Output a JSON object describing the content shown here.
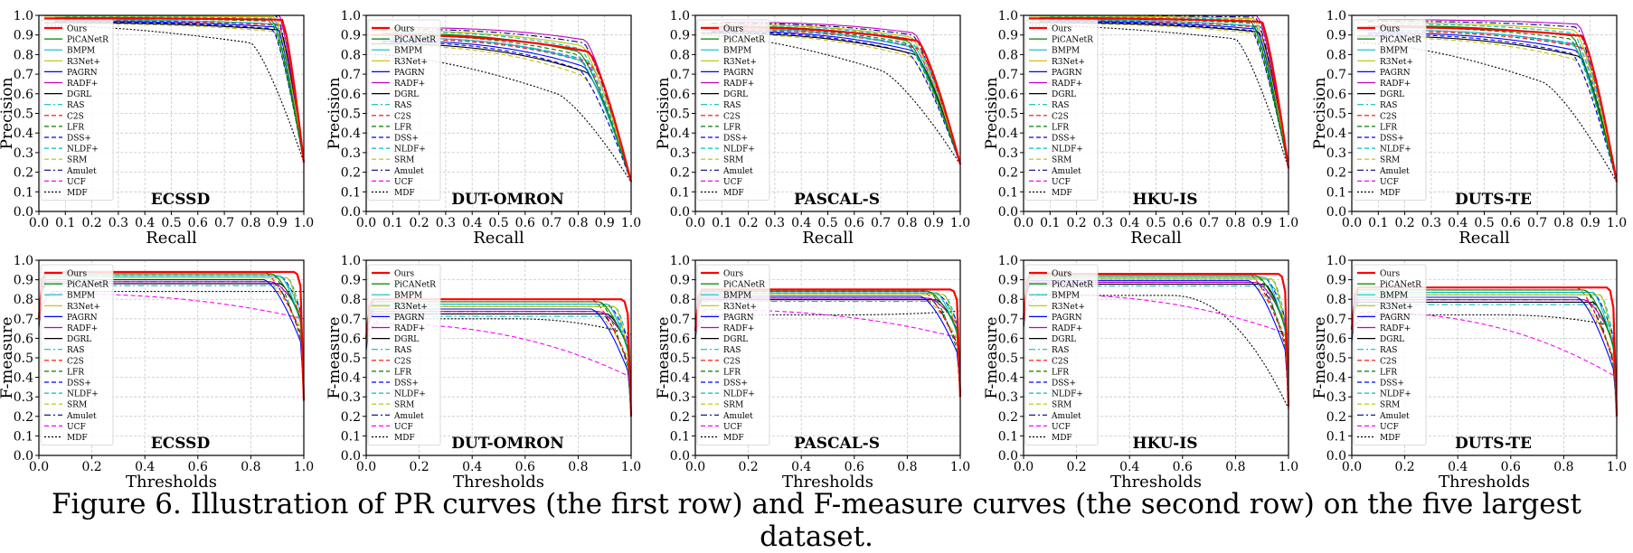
{
  "caption": "Figure 6. Illustration of PR curves (the first row) and F-measure curves (the second row) on the five largest dataset.",
  "legend_entries": [
    {
      "name": "Ours",
      "color": "#ff0000",
      "dash": "solid"
    },
    {
      "name": "PiCANetR",
      "color": "#008000",
      "dash": "solid"
    },
    {
      "name": "BMPM",
      "color": "#00bfbf",
      "dash": "solid"
    },
    {
      "name": "R3Net+",
      "color": "#bfbf00",
      "dash": "solid"
    },
    {
      "name": "PAGRN",
      "color": "#0000ff",
      "dash": "solid"
    },
    {
      "name": "RADF+",
      "color": "#bf00bf",
      "dash": "solid"
    },
    {
      "name": "DGRL",
      "color": "#000000",
      "dash": "solid"
    },
    {
      "name": "RAS",
      "color": "#00bfbf",
      "dash": "dashdot"
    },
    {
      "name": "C2S",
      "color": "#ff0000",
      "dash": "dashed"
    },
    {
      "name": "LFR",
      "color": "#008000",
      "dash": "dashed"
    },
    {
      "name": "DSS+",
      "color": "#0000ff",
      "dash": "dashed"
    },
    {
      "name": "NLDF+",
      "color": "#00bfbf",
      "dash": "dashed"
    },
    {
      "name": "SRM",
      "color": "#bfbf00",
      "dash": "dashed"
    },
    {
      "name": "Amulet",
      "color": "#000080",
      "dash": "dashdot"
    },
    {
      "name": "UCF",
      "color": "#ff00ff",
      "dash": "dashed"
    },
    {
      "name": "MDF",
      "color": "#000000",
      "dash": "dotted"
    }
  ],
  "chart_data": [
    {
      "type": "line",
      "kind": "pr",
      "title": "ECSSD",
      "xlabel": "Recall",
      "ylabel": "Precision",
      "xlim": [
        0,
        1
      ],
      "ylim": [
        0,
        1
      ],
      "grid": true,
      "legend": "upper-left",
      "xticks": [
        "0.0",
        "0.1",
        "0.2",
        "0.3",
        "0.4",
        "0.5",
        "0.6",
        "0.7",
        "0.8",
        "0.9",
        "1.0"
      ],
      "yticks": [
        "0.0",
        "0.1",
        "0.2",
        "0.3",
        "0.4",
        "0.5",
        "0.6",
        "0.7",
        "0.8",
        "0.9",
        "1.0"
      ],
      "series_shape": {
        "top": 0.985,
        "bottom": 0.97,
        "knee": 0.9,
        "end": 0.25,
        "spread": 0.015,
        "mdf_top": 0.95,
        "mdf_mid": 0.86,
        "mdf_knee": 0.8
      }
    },
    {
      "type": "line",
      "kind": "pr",
      "title": "DUT-OMRON",
      "xlabel": "Recall",
      "ylabel": "Precision",
      "xlim": [
        0,
        1
      ],
      "ylim": [
        0,
        1
      ],
      "grid": true,
      "legend": "upper-left",
      "xticks": [
        "0.0",
        "0.1",
        "0.2",
        "0.3",
        "0.4",
        "0.5",
        "0.6",
        "0.7",
        "0.8",
        "0.9",
        "1.0"
      ],
      "yticks": [
        "0.0",
        "0.1",
        "0.2",
        "0.3",
        "0.4",
        "0.5",
        "0.6",
        "0.7",
        "0.8",
        "0.9",
        "1.0"
      ],
      "series_shape": {
        "top": 0.9,
        "bottom": 0.8,
        "knee": 0.82,
        "end": 0.15,
        "spread": 0.03,
        "mdf_top": 0.8,
        "mdf_mid": 0.6,
        "mdf_knee": 0.72
      }
    },
    {
      "type": "line",
      "kind": "pr",
      "title": "PASCAL-S",
      "xlabel": "Recall",
      "ylabel": "Precision",
      "xlim": [
        0,
        1
      ],
      "ylim": [
        0,
        1
      ],
      "grid": true,
      "legend": "upper-left",
      "xticks": [
        "0.0",
        "0.1",
        "0.2",
        "0.3",
        "0.4",
        "0.5",
        "0.6",
        "0.7",
        "0.8",
        "0.9",
        "1.0"
      ],
      "yticks": [
        "0.0",
        "0.1",
        "0.2",
        "0.3",
        "0.4",
        "0.5",
        "0.6",
        "0.7",
        "0.8",
        "0.9",
        "1.0"
      ],
      "series_shape": {
        "top": 0.94,
        "bottom": 0.86,
        "knee": 0.82,
        "end": 0.24,
        "spread": 0.02,
        "mdf_top": 0.9,
        "mdf_mid": 0.72,
        "mdf_knee": 0.7
      }
    },
    {
      "type": "line",
      "kind": "pr",
      "title": "HKU-IS",
      "xlabel": "Recall",
      "ylabel": "Precision",
      "xlim": [
        0,
        1
      ],
      "ylim": [
        0,
        1
      ],
      "grid": true,
      "legend": "upper-left",
      "xticks": [
        "0.0",
        "0.1",
        "0.2",
        "0.3",
        "0.4",
        "0.5",
        "0.6",
        "0.7",
        "0.8",
        "0.9",
        "1.0"
      ],
      "yticks": [
        "0.0",
        "0.1",
        "0.2",
        "0.3",
        "0.4",
        "0.5",
        "0.6",
        "0.7",
        "0.8",
        "0.9",
        "1.0"
      ],
      "series_shape": {
        "top": 0.985,
        "bottom": 0.96,
        "knee": 0.88,
        "end": 0.22,
        "spread": 0.015,
        "mdf_top": 0.95,
        "mdf_mid": 0.88,
        "mdf_knee": 0.8
      }
    },
    {
      "type": "line",
      "kind": "pr",
      "title": "DUTS-TE",
      "xlabel": "Recall",
      "ylabel": "Precision",
      "xlim": [
        0,
        1
      ],
      "ylim": [
        0,
        1
      ],
      "grid": true,
      "legend": "upper-left",
      "xticks": [
        "0.0",
        "0.1",
        "0.2",
        "0.3",
        "0.4",
        "0.5",
        "0.6",
        "0.7",
        "0.8",
        "0.9",
        "1.0"
      ],
      "yticks": [
        "0.0",
        "0.1",
        "0.2",
        "0.3",
        "0.4",
        "0.5",
        "0.6",
        "0.7",
        "0.8",
        "0.9",
        "1.0"
      ],
      "series_shape": {
        "top": 0.94,
        "bottom": 0.88,
        "knee": 0.85,
        "end": 0.15,
        "spread": 0.03,
        "mdf_top": 0.86,
        "mdf_mid": 0.66,
        "mdf_knee": 0.72
      }
    },
    {
      "type": "line",
      "kind": "fm",
      "title": "ECSSD",
      "xlabel": "Thresholds",
      "ylabel": "F-measure",
      "xlim": [
        0,
        1
      ],
      "ylim": [
        0,
        1
      ],
      "grid": true,
      "legend": "upper-left",
      "xticks": [
        "0.0",
        "0.2",
        "0.4",
        "0.6",
        "0.8",
        "1.0"
      ],
      "yticks": [
        "0.0",
        "0.1",
        "0.2",
        "0.3",
        "0.4",
        "0.5",
        "0.6",
        "0.7",
        "0.8",
        "0.9",
        "1.0"
      ],
      "series_shape": {
        "top": 0.94,
        "bottom": 0.86,
        "drop": 0.7,
        "end": 0.28,
        "mdf_top": 0.84,
        "mdf_end": 0.84,
        "ucf_end": 0.7
      }
    },
    {
      "type": "line",
      "kind": "fm",
      "title": "DUT-OMRON",
      "xlabel": "Thresholds",
      "ylabel": "F-measure",
      "xlim": [
        0,
        1
      ],
      "ylim": [
        0,
        1
      ],
      "grid": true,
      "legend": "upper-left",
      "xticks": [
        "0.0",
        "0.2",
        "0.4",
        "0.6",
        "0.8",
        "1.0"
      ],
      "yticks": [
        "0.0",
        "0.1",
        "0.2",
        "0.3",
        "0.4",
        "0.5",
        "0.6",
        "0.7",
        "0.8",
        "0.9",
        "1.0"
      ],
      "series_shape": {
        "top": 0.8,
        "bottom": 0.7,
        "drop": 0.55,
        "end": 0.2,
        "mdf_top": 0.7,
        "mdf_end": 0.62,
        "ucf_end": 0.4
      }
    },
    {
      "type": "line",
      "kind": "fm",
      "title": "PASCAL-S",
      "xlabel": "Thresholds",
      "ylabel": "F-measure",
      "xlim": [
        0,
        1
      ],
      "ylim": [
        0,
        1
      ],
      "grid": true,
      "legend": "upper-left",
      "xticks": [
        "0.0",
        "0.2",
        "0.4",
        "0.6",
        "0.8",
        "1.0"
      ],
      "yticks": [
        "0.0",
        "0.1",
        "0.2",
        "0.3",
        "0.4",
        "0.5",
        "0.6",
        "0.7",
        "0.8",
        "0.9",
        "1.0"
      ],
      "series_shape": {
        "top": 0.85,
        "bottom": 0.78,
        "drop": 0.65,
        "end": 0.3,
        "mdf_top": 0.72,
        "mdf_end": 0.74,
        "ucf_end": 0.6
      }
    },
    {
      "type": "line",
      "kind": "fm",
      "title": "HKU-IS",
      "xlabel": "Thresholds",
      "ylabel": "F-measure",
      "xlim": [
        0,
        1
      ],
      "ylim": [
        0,
        1
      ],
      "grid": true,
      "legend": "upper-left",
      "xticks": [
        "0.0",
        "0.2",
        "0.4",
        "0.6",
        "0.8",
        "1.0"
      ],
      "yticks": [
        "0.0",
        "0.1",
        "0.2",
        "0.3",
        "0.4",
        "0.5",
        "0.6",
        "0.7",
        "0.8",
        "0.9",
        "1.0"
      ],
      "series_shape": {
        "top": 0.93,
        "bottom": 0.86,
        "drop": 0.65,
        "end": 0.25,
        "mdf_top": 0.82,
        "mdf_end": 0.24,
        "ucf_end": 0.62
      }
    },
    {
      "type": "line",
      "kind": "fm",
      "title": "DUTS-TE",
      "xlabel": "Thresholds",
      "ylabel": "F-measure",
      "xlim": [
        0,
        1
      ],
      "ylim": [
        0,
        1
      ],
      "grid": true,
      "legend": "upper-left",
      "xticks": [
        "0.0",
        "0.2",
        "0.4",
        "0.6",
        "0.8",
        "1.0"
      ],
      "yticks": [
        "0.0",
        "0.1",
        "0.2",
        "0.3",
        "0.4",
        "0.5",
        "0.6",
        "0.7",
        "0.8",
        "0.9",
        "1.0"
      ],
      "series_shape": {
        "top": 0.86,
        "bottom": 0.76,
        "drop": 0.55,
        "end": 0.2,
        "mdf_top": 0.72,
        "mdf_end": 0.66,
        "ucf_end": 0.4
      }
    }
  ]
}
